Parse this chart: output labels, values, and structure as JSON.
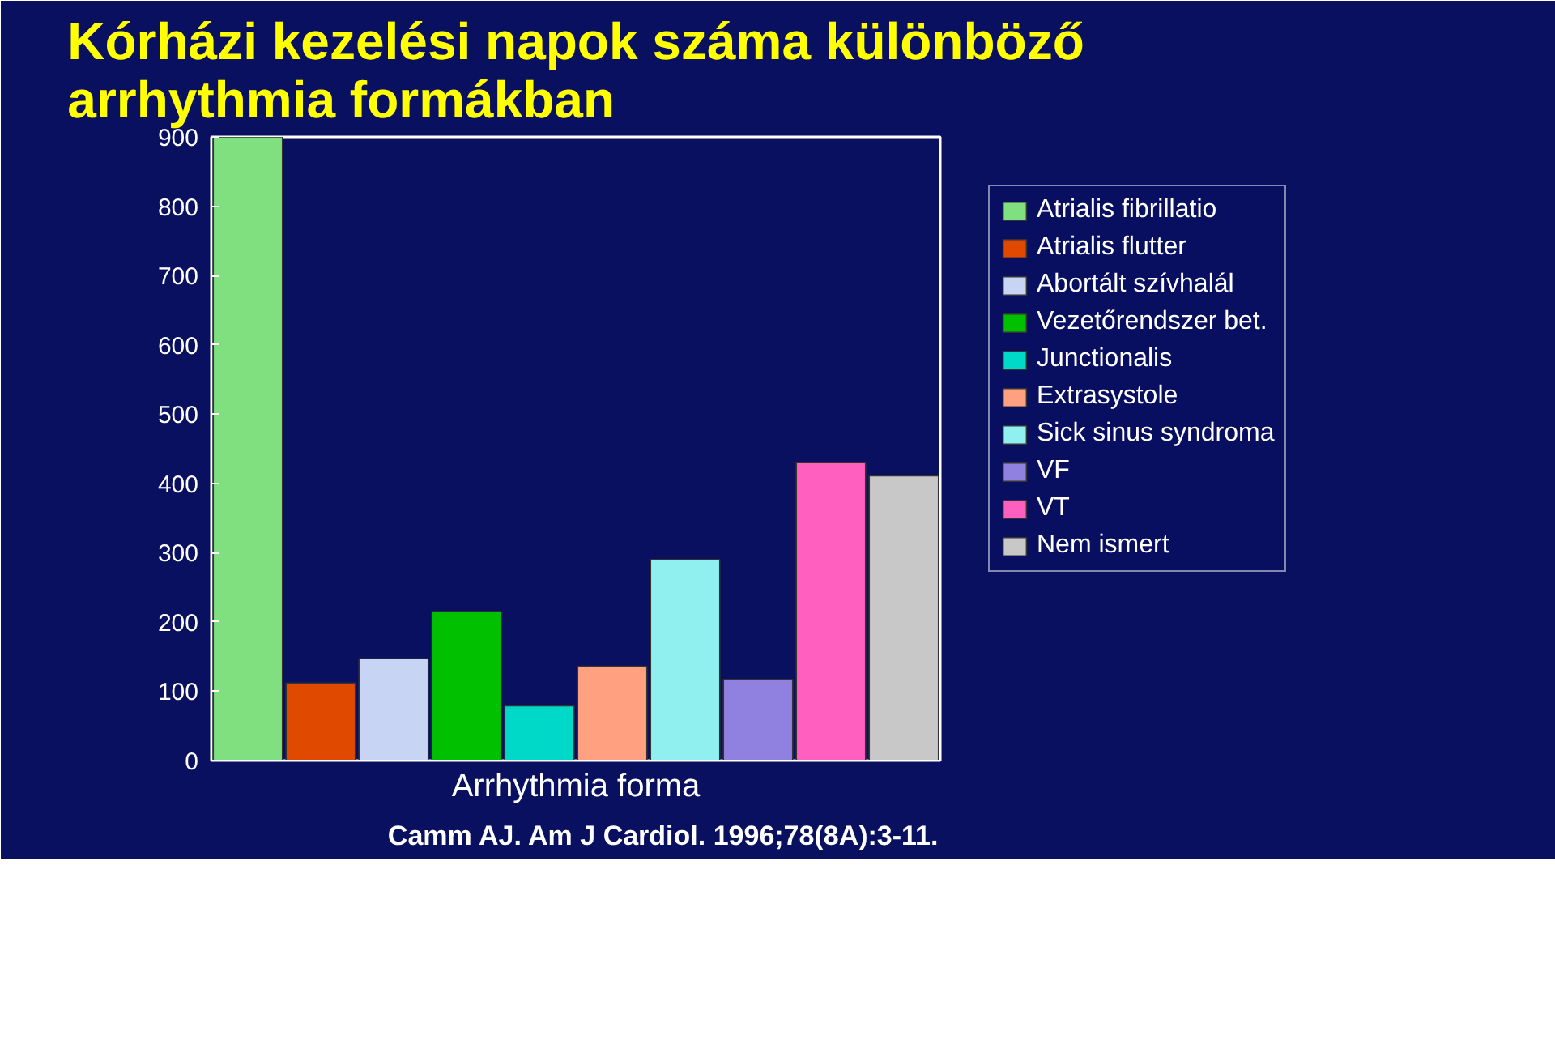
{
  "chart_data": {
    "type": "bar",
    "title": "Kórházi kezelési napok száma különböző arrhythmia formákban",
    "xlabel": "Arrhythmia forma",
    "annotations": [
      "Camm AJ. Am J Cardiol. 1996;78(8A):3-11."
    ],
    "categories": [
      null,
      null,
      null,
      null,
      null,
      null,
      null,
      null,
      null,
      null
    ],
    "series": [
      {
        "name": "Atrialis fibrillatio",
        "color": "#80e080",
        "values": [
          900,
          null,
          null,
          null,
          null,
          null,
          null,
          null,
          null,
          null
        ]
      },
      {
        "name": "Atrialis flutter",
        "color": "#e04a00",
        "values": [
          null,
          112,
          null,
          null,
          null,
          null,
          null,
          null,
          null,
          null
        ]
      },
      {
        "name": "Abortált szívhalál",
        "color": "#c8d4f4",
        "values": [
          null,
          null,
          147,
          null,
          null,
          null,
          null,
          null,
          null,
          null
        ]
      },
      {
        "name": "Vezetőrendszer bet.",
        "color": "#00c000",
        "values": [
          null,
          null,
          null,
          215,
          null,
          null,
          null,
          null,
          null,
          null
        ]
      },
      {
        "name": "Junctionalis",
        "color": "#00d8c8",
        "values": [
          null,
          null,
          null,
          null,
          79,
          null,
          null,
          null,
          null,
          null
        ]
      },
      {
        "name": "Extrasystole",
        "color": "#ffa080",
        "values": [
          null,
          null,
          null,
          null,
          null,
          136,
          null,
          null,
          null,
          null
        ]
      },
      {
        "name": "Sick sinus syndroma",
        "color": "#90f0f0",
        "values": [
          null,
          null,
          null,
          null,
          null,
          null,
          290,
          null,
          null,
          null
        ]
      },
      {
        "name": "VF",
        "color": "#9080e0",
        "values": [
          null,
          null,
          null,
          null,
          null,
          null,
          null,
          117,
          null,
          null
        ]
      },
      {
        "name": "VT",
        "color": "#ff60c0",
        "values": [
          null,
          null,
          null,
          null,
          null,
          null,
          null,
          null,
          430,
          null
        ]
      },
      {
        "name": "Nem ismert",
        "color": "#c8c8c8",
        "values": [
          null,
          null,
          null,
          null,
          null,
          null,
          null,
          null,
          null,
          411
        ]
      }
    ],
    "ylim": [
      0,
      900
    ],
    "yticks": [
      0,
      100,
      200,
      300,
      400,
      500,
      600,
      700,
      800,
      900
    ],
    "grid": false,
    "legend": "top right",
    "tick_labels": "y"
  }
}
